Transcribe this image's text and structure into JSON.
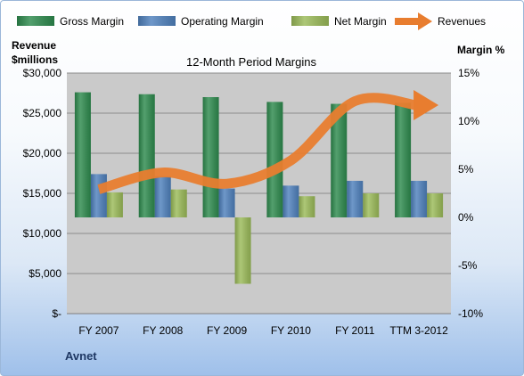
{
  "chart_data": {
    "type": "bar",
    "title": "12-Month Period Margins",
    "company": "Avnet",
    "left_axis_label_line1": "Revenue",
    "left_axis_label_line2": "$millions",
    "right_axis_label": "Margin %",
    "categories": [
      "FY 2007",
      "FY 2008",
      "FY 2009",
      "FY 2010",
      "FY 2011",
      "TTM 3-2012"
    ],
    "left_axis": {
      "ylim": [
        0,
        30000
      ],
      "ticks": [
        0,
        5000,
        10000,
        15000,
        20000,
        25000,
        30000
      ],
      "tick_labels": [
        "$-",
        "$5,000",
        "$10,000",
        "$15,000",
        "$20,000",
        "$25,000",
        "$30,000"
      ]
    },
    "right_axis": {
      "ylim": [
        -10,
        15
      ],
      "ticks": [
        -10,
        -5,
        0,
        5,
        10,
        15
      ],
      "tick_labels": [
        "-10%",
        "-5%",
        "0%",
        "5%",
        "10%",
        "15%"
      ]
    },
    "series": [
      {
        "name": "Gross Margin",
        "axis": "right",
        "kind": "bar",
        "color": "#2e8b4e",
        "values": [
          13.0,
          12.8,
          12.5,
          12.0,
          11.8,
          11.9
        ]
      },
      {
        "name": "Operating Margin",
        "axis": "right",
        "kind": "bar",
        "color": "#4f81bd",
        "values": [
          4.5,
          4.3,
          3.0,
          3.3,
          3.8,
          3.8
        ]
      },
      {
        "name": "Net Margin",
        "axis": "right",
        "kind": "bar",
        "color": "#9bbb59",
        "values": [
          2.6,
          2.9,
          -6.9,
          2.2,
          2.5,
          2.5
        ]
      },
      {
        "name": "Revenues",
        "axis": "left",
        "kind": "arrow",
        "color": "#e87d2f",
        "values": [
          15500,
          17600,
          16200,
          19100,
          26500,
          26000
        ]
      }
    ],
    "legend": {
      "position": "top",
      "items": [
        {
          "label": "Gross Margin",
          "color": "#2e8b4e",
          "shape": "bar"
        },
        {
          "label": "Operating Margin",
          "color": "#4f81bd",
          "shape": "bar"
        },
        {
          "label": "Net Margin",
          "color": "#9bbb59",
          "shape": "bar"
        },
        {
          "label": "Revenues",
          "color": "#e87d2f",
          "shape": "arrow"
        }
      ]
    },
    "grid": true,
    "colors": {
      "plot_background": "#cacaca",
      "gridline": "#8c8c8c",
      "text": "#1f3864"
    }
  }
}
